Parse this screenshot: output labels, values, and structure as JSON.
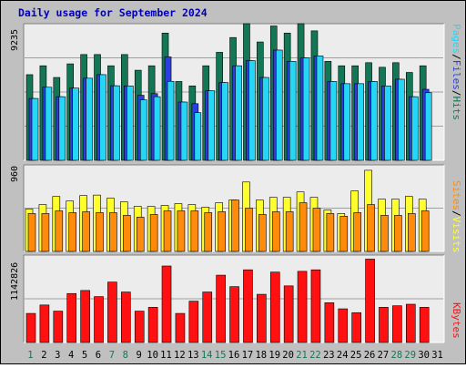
{
  "title": "Daily usage for September 2024",
  "colors": {
    "background": "#c0c0c0",
    "plot_background": "#ececec",
    "hits": "#137755",
    "files": "#2b3fe0",
    "pages": "#25d6f5",
    "visits": "#ffff2e",
    "sites": "#ff8b0c",
    "kbytes": "#ff1111",
    "title_text": "#0000b8",
    "gridline": "#a0a0a0",
    "weekend_label": "#137755",
    "weekday_label": "#000000"
  },
  "right_labels": {
    "panel1": [
      {
        "text": "Pages",
        "color": "#25d6f5"
      },
      {
        "text": "/",
        "color": "#000000"
      },
      {
        "text": "Files",
        "color": "#2b3fe0"
      },
      {
        "text": "/",
        "color": "#000000"
      },
      {
        "text": "Hits",
        "color": "#137755"
      }
    ],
    "panel2": [
      {
        "text": "Sites",
        "color": "#ff8b0c"
      },
      {
        "text": "/",
        "color": "#000000"
      },
      {
        "text": "Visits",
        "color": "#ffff2e"
      }
    ],
    "panel3": [
      {
        "text": "KBytes",
        "color": "#ff1111"
      }
    ]
  },
  "chart_data": [
    {
      "type": "bar",
      "panel": "hits-files-pages",
      "ymax_label": "9235",
      "ylim": [
        0,
        9235
      ],
      "categories": [
        "1",
        "2",
        "3",
        "4",
        "5",
        "6",
        "7",
        "8",
        "9",
        "10",
        "11",
        "12",
        "13",
        "14",
        "15",
        "16",
        "17",
        "18",
        "19",
        "20",
        "21",
        "22",
        "23",
        "24",
        "25",
        "26",
        "27",
        "28",
        "29",
        "30",
        "31"
      ],
      "series": [
        {
          "name": "Hits",
          "values": [
            5790,
            6390,
            5600,
            6520,
            7150,
            7150,
            6390,
            7150,
            6090,
            6390,
            8600,
            5330,
            5030,
            6390,
            7300,
            8300,
            9235,
            8000,
            9080,
            8600,
            9235,
            8750,
            6690,
            6390,
            6390,
            6600,
            6290,
            6600,
            5940,
            6390,
            null
          ]
        },
        {
          "name": "Files",
          "values": [
            4180,
            4940,
            4300,
            4880,
            5550,
            5790,
            5040,
            5030,
            4400,
            4510,
            6990,
            3940,
            3830,
            4700,
            5260,
            6390,
            6740,
            5600,
            7450,
            6690,
            6920,
            7060,
            5330,
            5180,
            5180,
            5330,
            5030,
            5480,
            4300,
            4800,
            null
          ]
        },
        {
          "name": "Pages",
          "values": [
            4180,
            4940,
            4300,
            4880,
            5550,
            5790,
            5040,
            5030,
            4090,
            4300,
            5340,
            3940,
            3220,
            4700,
            5260,
            6390,
            6740,
            5600,
            7450,
            6690,
            6920,
            7060,
            5330,
            5180,
            5180,
            5330,
            5030,
            5480,
            4300,
            4570,
            null
          ]
        }
      ]
    },
    {
      "type": "bar",
      "panel": "visits-sites",
      "ymax_label": "960",
      "ylim": [
        0,
        960
      ],
      "categories": [
        "1",
        "2",
        "3",
        "4",
        "5",
        "6",
        "7",
        "8",
        "9",
        "10",
        "11",
        "12",
        "13",
        "14",
        "15",
        "16",
        "17",
        "18",
        "19",
        "20",
        "21",
        "22",
        "23",
        "24",
        "25",
        "26",
        "27",
        "28",
        "29",
        "30",
        "31"
      ],
      "series": [
        {
          "name": "Visits",
          "values": [
            470,
            520,
            610,
            560,
            620,
            625,
            590,
            550,
            500,
            500,
            510,
            530,
            520,
            490,
            540,
            570,
            770,
            570,
            600,
            600,
            660,
            600,
            460,
            420,
            670,
            900,
            580,
            580,
            610,
            580,
            null
          ]
        },
        {
          "name": "Sites",
          "values": [
            420,
            420,
            450,
            430,
            440,
            430,
            430,
            400,
            380,
            410,
            450,
            450,
            450,
            430,
            440,
            570,
            480,
            410,
            440,
            440,
            540,
            480,
            420,
            390,
            430,
            520,
            400,
            400,
            420,
            450,
            null
          ]
        }
      ]
    },
    {
      "type": "bar",
      "panel": "kbytes",
      "ymax_label": "1142826",
      "ylim": [
        0,
        1142826
      ],
      "categories": [
        "1",
        "2",
        "3",
        "4",
        "5",
        "6",
        "7",
        "8",
        "9",
        "10",
        "11",
        "12",
        "13",
        "14",
        "15",
        "16",
        "17",
        "18",
        "19",
        "20",
        "21",
        "22",
        "23",
        "24",
        "25",
        "26",
        "27",
        "28",
        "29",
        "30",
        "31"
      ],
      "series": [
        {
          "name": "KBytes",
          "values": [
            380000,
            490000,
            410000,
            640000,
            680000,
            600000,
            790000,
            660000,
            410000,
            460000,
            1000000,
            380000,
            540000,
            660000,
            880000,
            730000,
            950000,
            630000,
            920000,
            740000,
            930000,
            950000,
            520000,
            440000,
            390000,
            1090000,
            460000,
            480000,
            500000,
            460000,
            null
          ]
        }
      ]
    }
  ],
  "weekend_days": [
    "1",
    "7",
    "8",
    "14",
    "15",
    "21",
    "22",
    "28",
    "29"
  ]
}
